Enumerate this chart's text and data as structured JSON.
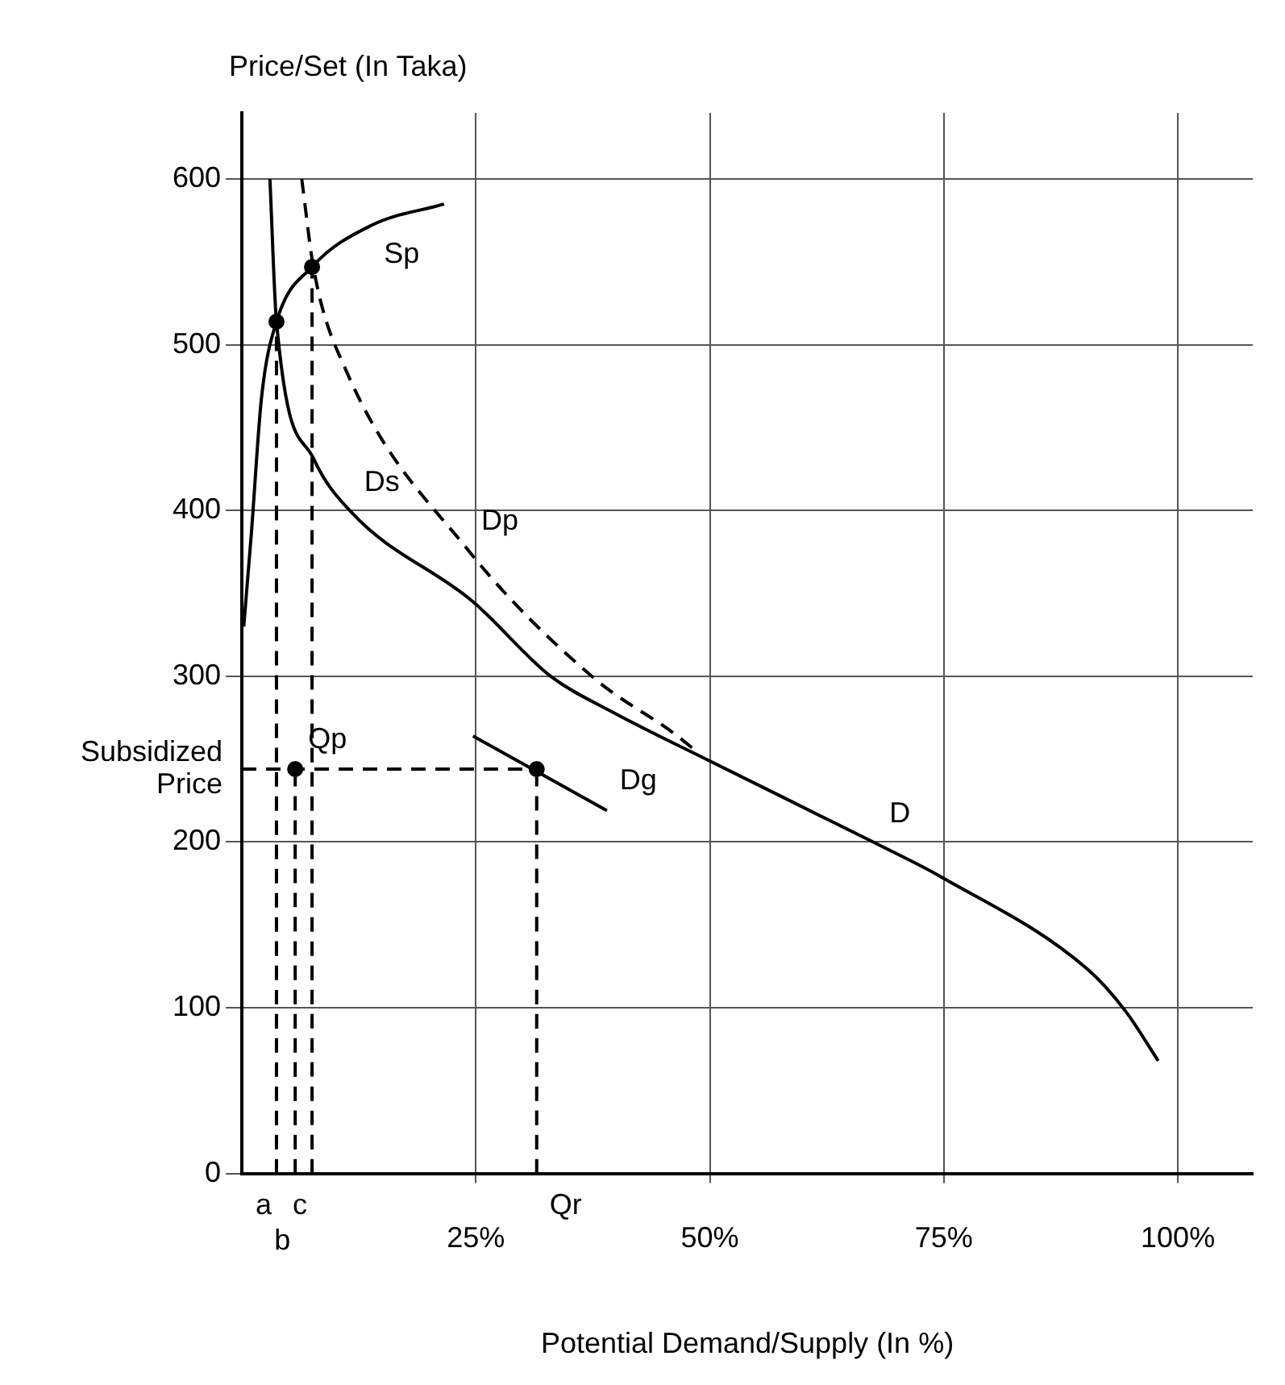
{
  "chart_data": {
    "type": "line",
    "ylabel": "Price/Set (In Taka)",
    "xlabel": "Potential Demand/Supply (In %)",
    "xlim": [
      0,
      108
    ],
    "ylim": [
      0,
      640
    ],
    "xticks": [
      {
        "value": 25,
        "label": "25%"
      },
      {
        "value": 50,
        "label": "50%"
      },
      {
        "value": 75,
        "label": "75%"
      },
      {
        "value": 100,
        "label": "100%"
      }
    ],
    "yticks": [
      0,
      100,
      200,
      300,
      400,
      500,
      600
    ],
    "grid": true,
    "legend": false,
    "series": [
      {
        "color": "#000000",
        "line_style": "solid",
        "x": [
          3.0,
          3.7,
          7.7,
          11.7,
          24.7,
          33,
          39.4,
          50.3,
          67.8,
          74.7,
          90.4,
          94.4,
          97.9
        ],
        "values": [
          600,
          514,
          431,
          399,
          345,
          300,
          279,
          248,
          199,
          179,
          123,
          98,
          68
        ]
      },
      {
        "color": "#000000",
        "line_style": "dashed",
        "x": [
          6.4,
          7.7,
          11.1,
          24.2,
          37.6,
          46.3,
          48.5
        ],
        "values": [
          600,
          545,
          485,
          376,
          299,
          265,
          255
        ]
      },
      {
        "color": "#000000",
        "line_style": "solid",
        "x": [
          0.2,
          1,
          2.1,
          3.7,
          7.5,
          13.8,
          21.6
        ],
        "values": [
          330,
          385,
          468,
          514,
          547,
          572,
          585
        ]
      },
      {
        "color": "#000000",
        "line_style": "solid",
        "x": [
          24.7,
          39
        ],
        "values": [
          264,
          219
        ]
      },
      {
        "color": "#000000",
        "line_style": "dashed",
        "x": [
          3.7,
          3.7
        ],
        "values": [
          0,
          514
        ]
      },
      {
        "color": "#000000",
        "line_style": "dashed",
        "x": [
          7.5,
          7.5
        ],
        "values": [
          0,
          547
        ]
      },
      {
        "color": "#000000",
        "line_style": "dashed",
        "x": [
          5.7,
          5.7
        ],
        "values": [
          0,
          244
        ]
      },
      {
        "color": "#000000",
        "line_style": "dashed",
        "x": [
          0,
          31.5
        ],
        "values": [
          244,
          244
        ]
      },
      {
        "color": "#000000",
        "line_style": "dashed",
        "x": [
          31.5,
          31.5
        ],
        "values": [
          0,
          244
        ]
      },
      {
        "type": "scatter",
        "color": "#000000",
        "marker": "circle",
        "x": [
          3.7,
          7.5,
          5.7,
          31.5
        ],
        "values": [
          514,
          547,
          244,
          244
        ]
      }
    ],
    "annotations": [
      {
        "text": "Sp",
        "x": 13.8,
        "y": 572
      },
      {
        "text": "Ds",
        "x": 11.7,
        "y": 399
      },
      {
        "text": "Dp",
        "x": 24.2,
        "y": 376
      },
      {
        "text": "D",
        "x": 67.8,
        "y": 199
      },
      {
        "text": "Dg",
        "x": 39,
        "y": 219
      },
      {
        "text": "Qp",
        "x": 5.7,
        "y": 244
      },
      {
        "text": "Subsidized\nPrice",
        "x": 0,
        "y": 244
      },
      {
        "text": "a",
        "x": 3.7,
        "y": 0
      },
      {
        "text": "b",
        "x": 5.7,
        "y": 0
      },
      {
        "text": "c",
        "x": 7.5,
        "y": 0
      },
      {
        "text": "Qr",
        "x": 31.5,
        "y": 0
      }
    ]
  }
}
